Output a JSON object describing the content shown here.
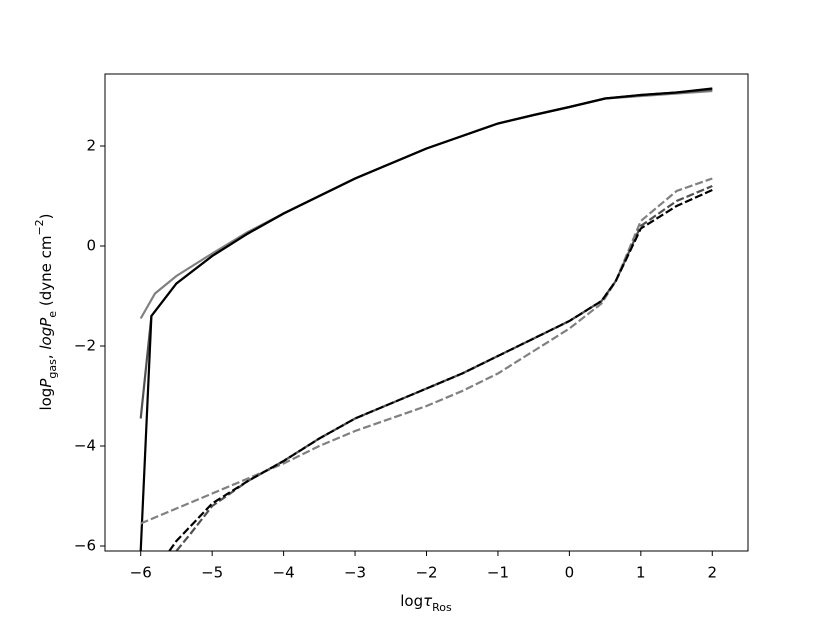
{
  "chart_data": {
    "type": "line",
    "xlabel_parts": [
      {
        "text": "log"
      },
      {
        "text": "τ",
        "style": "italic"
      },
      {
        "text": "Ros",
        "style": "sub"
      }
    ],
    "ylabel_parts": [
      {
        "text": "log"
      },
      {
        "text": "P",
        "style": "italic"
      },
      {
        "text": "gas",
        "style": "sub"
      },
      {
        "text": ", "
      },
      {
        "text": "logP",
        "style": "italic"
      },
      {
        "text": "e",
        "style": "sub"
      },
      {
        "text": " (dyne cm"
      },
      {
        "text": "−2",
        "style": "sup"
      },
      {
        "text": ")"
      }
    ],
    "xlim": [
      -6.5,
      2.5
    ],
    "ylim": [
      -6.1,
      3.44
    ],
    "xticks": [
      {
        "value": -6,
        "label": "−6"
      },
      {
        "value": -5,
        "label": "−5"
      },
      {
        "value": -4,
        "label": "−4"
      },
      {
        "value": -3,
        "label": "−3"
      },
      {
        "value": -2,
        "label": "−2"
      },
      {
        "value": -1,
        "label": "−1"
      },
      0,
      1,
      2
    ],
    "yticks": [
      {
        "value": -6,
        "label": "−6"
      },
      {
        "value": -4,
        "label": "−4"
      },
      {
        "value": -2,
        "label": "−2"
      },
      0,
      2
    ],
    "series": [
      {
        "color": "#808080",
        "dash": false,
        "x": [
          -6,
          -5.8,
          -5.5,
          -5,
          -4.5,
          -4,
          -3.5,
          -3,
          -2.5,
          -2,
          -1.5,
          -1,
          -0.5,
          0,
          0.5,
          1,
          1.5,
          2
        ],
        "values": [
          -1.45,
          -0.95,
          -0.6,
          -0.15,
          0.28,
          0.65,
          1.0,
          1.35,
          1.65,
          1.95,
          2.2,
          2.45,
          2.62,
          2.78,
          2.95,
          3.0,
          3.05,
          3.1
        ]
      },
      {
        "color": "#505050",
        "dash": false,
        "x": [
          -6,
          -5.85,
          -5.5,
          -5,
          -4.5,
          -4,
          -3.5,
          -3,
          -2.5,
          -2,
          -1.5,
          -1,
          -0.5,
          0,
          0.5,
          1,
          1.5,
          2
        ],
        "values": [
          -3.45,
          -1.4,
          -0.75,
          -0.2,
          0.25,
          0.65,
          1.0,
          1.35,
          1.65,
          1.95,
          2.2,
          2.45,
          2.62,
          2.78,
          2.95,
          3.02,
          3.07,
          3.13
        ]
      },
      {
        "color": "#000000",
        "dash": false,
        "x": [
          -6,
          -5.85,
          -5.5,
          -5,
          -4.5,
          -4,
          -3.5,
          -3,
          -2.5,
          -2,
          -1.5,
          -1,
          -0.5,
          0,
          0.5,
          1,
          1.5,
          2
        ],
        "values": [
          -6.1,
          -1.4,
          -0.75,
          -0.2,
          0.25,
          0.65,
          1.0,
          1.35,
          1.65,
          1.95,
          2.2,
          2.45,
          2.62,
          2.78,
          2.95,
          3.02,
          3.07,
          3.15
        ]
      },
      {
        "color": "#808080",
        "dash": true,
        "x": [
          -6,
          -5.5,
          -5,
          -4.5,
          -4,
          -3.5,
          -3,
          -2.5,
          -2,
          -1.5,
          -1,
          -0.5,
          0,
          0.45,
          0.65,
          1,
          1.5,
          2
        ],
        "values": [
          -5.55,
          -5.25,
          -4.95,
          -4.65,
          -4.35,
          -4.0,
          -3.7,
          -3.45,
          -3.2,
          -2.9,
          -2.55,
          -2.1,
          -1.65,
          -1.15,
          -0.7,
          0.5,
          1.1,
          1.35
        ]
      },
      {
        "color": "#505050",
        "dash": true,
        "x": [
          -5.5,
          -5.3,
          -5,
          -4.5,
          -4,
          -3.5,
          -3,
          -2.5,
          -2,
          -1.5,
          -1,
          -0.5,
          0,
          0.45,
          0.65,
          1,
          1.5,
          2
        ],
        "values": [
          -6.1,
          -5.75,
          -5.2,
          -4.7,
          -4.3,
          -3.85,
          -3.45,
          -3.15,
          -2.85,
          -2.55,
          -2.2,
          -1.85,
          -1.5,
          -1.1,
          -0.7,
          0.4,
          0.9,
          1.2
        ]
      },
      {
        "color": "#000000",
        "dash": true,
        "x": [
          -5.6,
          -5.5,
          -5,
          -4.5,
          -4,
          -3.5,
          -3,
          -2.5,
          -2,
          -1.5,
          -1,
          -0.5,
          0,
          0.45,
          0.65,
          1,
          1.5,
          2
        ],
        "values": [
          -6.1,
          -5.9,
          -5.15,
          -4.7,
          -4.3,
          -3.85,
          -3.45,
          -3.15,
          -2.85,
          -2.55,
          -2.2,
          -1.85,
          -1.5,
          -1.1,
          -0.7,
          0.35,
          0.8,
          1.12
        ]
      }
    ]
  }
}
